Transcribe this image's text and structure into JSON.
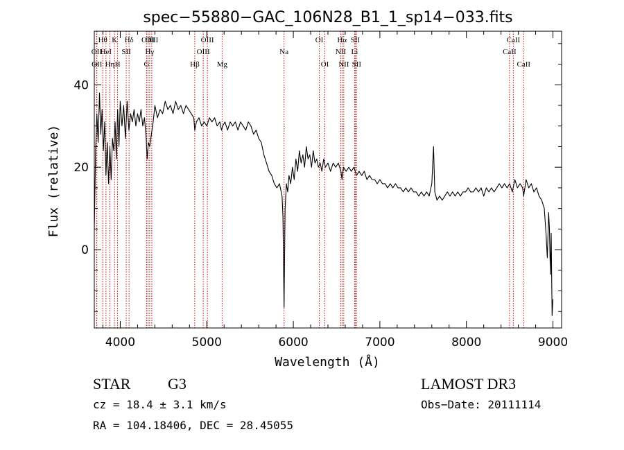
{
  "chart_data": {
    "type": "line",
    "title": "spec−55880−GAC_106N28_B1_1_sp14−033.fits",
    "xlabel": "Wavelength (Å)",
    "ylabel": "Flux (relative)",
    "xlim": [
      3700,
      9100
    ],
    "ylim": [
      -19,
      53
    ],
    "xticks": [
      4000,
      5000,
      6000,
      7000,
      8000,
      9000
    ],
    "xtick_labels": [
      "4000",
      "5000",
      "6000",
      "7000",
      "8000",
      "9000"
    ],
    "yticks": [
      0,
      20,
      40
    ],
    "ytick_labels": [
      "0",
      "20",
      "40"
    ],
    "grid": false,
    "line_color": "#000000",
    "marker_color": "#cc0000",
    "series": [
      {
        "points": [
          [
            3700,
            5
          ],
          [
            3715,
            24
          ],
          [
            3730,
            33
          ],
          [
            3745,
            26
          ],
          [
            3760,
            38
          ],
          [
            3775,
            28
          ],
          [
            3790,
            34
          ],
          [
            3805,
            24
          ],
          [
            3820,
            31
          ],
          [
            3835,
            18
          ],
          [
            3850,
            26
          ],
          [
            3865,
            16
          ],
          [
            3880,
            25
          ],
          [
            3895,
            17
          ],
          [
            3910,
            27
          ],
          [
            3925,
            24
          ],
          [
            3940,
            31
          ],
          [
            3955,
            22
          ],
          [
            3970,
            34
          ],
          [
            3985,
            25
          ],
          [
            4000,
            36
          ],
          [
            4020,
            30
          ],
          [
            4040,
            35
          ],
          [
            4060,
            27
          ],
          [
            4080,
            36
          ],
          [
            4100,
            29
          ],
          [
            4120,
            33
          ],
          [
            4140,
            31
          ],
          [
            4160,
            34
          ],
          [
            4180,
            30
          ],
          [
            4200,
            33
          ],
          [
            4220,
            31
          ],
          [
            4240,
            34
          ],
          [
            4260,
            30
          ],
          [
            4280,
            32
          ],
          [
            4300,
            27
          ],
          [
            4310,
            22
          ],
          [
            4325,
            26
          ],
          [
            4340,
            25
          ],
          [
            4360,
            28
          ],
          [
            4380,
            31
          ],
          [
            4400,
            35
          ],
          [
            4430,
            32
          ],
          [
            4460,
            34
          ],
          [
            4490,
            33
          ],
          [
            4520,
            36
          ],
          [
            4550,
            34
          ],
          [
            4580,
            35
          ],
          [
            4610,
            33
          ],
          [
            4640,
            36
          ],
          [
            4670,
            34
          ],
          [
            4700,
            35
          ],
          [
            4730,
            33
          ],
          [
            4760,
            35
          ],
          [
            4790,
            34
          ],
          [
            4820,
            33
          ],
          [
            4850,
            32
          ],
          [
            4861,
            29
          ],
          [
            4880,
            31
          ],
          [
            4910,
            32
          ],
          [
            4940,
            30
          ],
          [
            4970,
            31
          ],
          [
            5000,
            30
          ],
          [
            5030,
            32
          ],
          [
            5060,
            31
          ],
          [
            5090,
            32
          ],
          [
            5120,
            30
          ],
          [
            5150,
            31
          ],
          [
            5170,
            29
          ],
          [
            5184,
            30
          ],
          [
            5210,
            31
          ],
          [
            5240,
            29
          ],
          [
            5270,
            31
          ],
          [
            5300,
            30
          ],
          [
            5330,
            31
          ],
          [
            5360,
            29
          ],
          [
            5390,
            31
          ],
          [
            5420,
            30
          ],
          [
            5450,
            29
          ],
          [
            5480,
            31
          ],
          [
            5510,
            30
          ],
          [
            5540,
            28
          ],
          [
            5570,
            29
          ],
          [
            5600,
            27
          ],
          [
            5630,
            26
          ],
          [
            5660,
            23
          ],
          [
            5690,
            21
          ],
          [
            5720,
            19
          ],
          [
            5750,
            18
          ],
          [
            5780,
            16
          ],
          [
            5810,
            15
          ],
          [
            5840,
            16
          ],
          [
            5870,
            13
          ],
          [
            5880,
            8
          ],
          [
            5893,
            -14
          ],
          [
            5905,
            10
          ],
          [
            5920,
            16
          ],
          [
            5935,
            14
          ],
          [
            5950,
            18
          ],
          [
            5970,
            16
          ],
          [
            5990,
            20
          ],
          [
            6010,
            17
          ],
          [
            6030,
            22
          ],
          [
            6050,
            19
          ],
          [
            6070,
            24
          ],
          [
            6090,
            21
          ],
          [
            6110,
            23
          ],
          [
            6130,
            20
          ],
          [
            6150,
            25
          ],
          [
            6170,
            22
          ],
          [
            6190,
            23
          ],
          [
            6210,
            20
          ],
          [
            6230,
            24
          ],
          [
            6250,
            21
          ],
          [
            6270,
            22
          ],
          [
            6290,
            20
          ],
          [
            6310,
            21
          ],
          [
            6330,
            19
          ],
          [
            6350,
            22
          ],
          [
            6370,
            20
          ],
          [
            6400,
            21
          ],
          [
            6430,
            19
          ],
          [
            6460,
            21
          ],
          [
            6490,
            20
          ],
          [
            6520,
            21
          ],
          [
            6550,
            19
          ],
          [
            6563,
            17
          ],
          [
            6580,
            20
          ],
          [
            6610,
            19
          ],
          [
            6640,
            20
          ],
          [
            6670,
            19
          ],
          [
            6700,
            20
          ],
          [
            6730,
            18
          ],
          [
            6760,
            19
          ],
          [
            6790,
            18
          ],
          [
            6820,
            19
          ],
          [
            6850,
            17
          ],
          [
            6880,
            18
          ],
          [
            6910,
            17
          ],
          [
            6940,
            17
          ],
          [
            6970,
            16
          ],
          [
            7000,
            17
          ],
          [
            7030,
            16
          ],
          [
            7060,
            16
          ],
          [
            7090,
            15
          ],
          [
            7120,
            16
          ],
          [
            7150,
            15
          ],
          [
            7180,
            16
          ],
          [
            7210,
            15
          ],
          [
            7240,
            15
          ],
          [
            7270,
            14
          ],
          [
            7300,
            15
          ],
          [
            7330,
            14
          ],
          [
            7360,
            15
          ],
          [
            7390,
            14
          ],
          [
            7420,
            14
          ],
          [
            7450,
            13
          ],
          [
            7480,
            14
          ],
          [
            7510,
            13
          ],
          [
            7540,
            14
          ],
          [
            7570,
            13
          ],
          [
            7600,
            16
          ],
          [
            7620,
            25
          ],
          [
            7635,
            14
          ],
          [
            7660,
            12
          ],
          [
            7690,
            13
          ],
          [
            7720,
            12
          ],
          [
            7750,
            13
          ],
          [
            7780,
            14
          ],
          [
            7810,
            13
          ],
          [
            7840,
            14
          ],
          [
            7870,
            13
          ],
          [
            7900,
            14
          ],
          [
            7930,
            13
          ],
          [
            7960,
            14
          ],
          [
            7990,
            14
          ],
          [
            8020,
            15
          ],
          [
            8050,
            14
          ],
          [
            8080,
            14
          ],
          [
            8110,
            15
          ],
          [
            8140,
            14
          ],
          [
            8170,
            15
          ],
          [
            8200,
            13
          ],
          [
            8230,
            15
          ],
          [
            8260,
            14
          ],
          [
            8290,
            15
          ],
          [
            8320,
            14
          ],
          [
            8350,
            15
          ],
          [
            8380,
            16
          ],
          [
            8410,
            15
          ],
          [
            8440,
            16
          ],
          [
            8470,
            15
          ],
          [
            8500,
            16
          ],
          [
            8530,
            14
          ],
          [
            8560,
            17
          ],
          [
            8590,
            15
          ],
          [
            8620,
            16
          ],
          [
            8650,
            15
          ],
          [
            8662,
            13
          ],
          [
            8690,
            17
          ],
          [
            8720,
            15
          ],
          [
            8750,
            16
          ],
          [
            8780,
            14
          ],
          [
            8810,
            15
          ],
          [
            8840,
            13
          ],
          [
            8870,
            12
          ],
          [
            8900,
            10
          ],
          [
            8920,
            4
          ],
          [
            8935,
            -2
          ],
          [
            8950,
            9
          ],
          [
            8960,
            5
          ],
          [
            8970,
            -6
          ],
          [
            8980,
            4
          ],
          [
            8990,
            -16
          ],
          [
            9000,
            -12
          ]
        ]
      }
    ],
    "line_markers": [
      {
        "label": "OII",
        "x": 3727,
        "row": 2
      },
      {
        "label": "OII",
        "x": 3730,
        "row": 3
      },
      {
        "label": "Hθ",
        "x": 3798,
        "row": 1
      },
      {
        "label": "HeI",
        "x": 3835,
        "row": 2
      },
      {
        "label": "Hη",
        "x": 3880,
        "row": 3
      },
      {
        "label": "K",
        "x": 3934,
        "row": 1
      },
      {
        "label": "SII",
        "x": 4069,
        "row": 2
      },
      {
        "label": "H",
        "x": 3969,
        "row": 3
      },
      {
        "label": "Hδ",
        "x": 4102,
        "row": 1
      },
      {
        "label": "OIII",
        "x": 4321,
        "row": 1
      },
      {
        "label": "Hγ",
        "x": 4340,
        "row": 2
      },
      {
        "label": "G",
        "x": 4305,
        "row": 3
      },
      {
        "label": "OIII",
        "x": 4364,
        "row": 1
      },
      {
        "label": "Hβ",
        "x": 4861,
        "row": 3
      },
      {
        "label": "OIII",
        "x": 5007,
        "row": 1
      },
      {
        "label": "OIII",
        "x": 4959,
        "row": 2
      },
      {
        "label": "Mg",
        "x": 5177,
        "row": 3
      },
      {
        "label": "Na",
        "x": 5893,
        "row": 2
      },
      {
        "label": "OI",
        "x": 6300,
        "row": 1
      },
      {
        "label": "OI",
        "x": 6364,
        "row": 3
      },
      {
        "label": "Hα",
        "x": 6563,
        "row": 1
      },
      {
        "label": "NII",
        "x": 6548,
        "row": 2
      },
      {
        "label": "NII",
        "x": 6583,
        "row": 3
      },
      {
        "label": "SII",
        "x": 6716,
        "row": 1
      },
      {
        "label": "Li",
        "x": 6708,
        "row": 2
      },
      {
        "label": "SII",
        "x": 6731,
        "row": 3
      },
      {
        "label": "CaII",
        "x": 8542,
        "row": 1
      },
      {
        "label": "CaII",
        "x": 8498,
        "row": 2
      },
      {
        "label": "CaII",
        "x": 8662,
        "row": 3
      }
    ]
  },
  "info": {
    "class_label": "STAR",
    "subclass": "G3",
    "survey": "LAMOST DR3",
    "redshift": "cz = 18.4 ± 3.1 km/s",
    "obs_date": "Obs−Date: 20111114",
    "coords": "RA = 104.18406, DEC =  28.45055"
  }
}
